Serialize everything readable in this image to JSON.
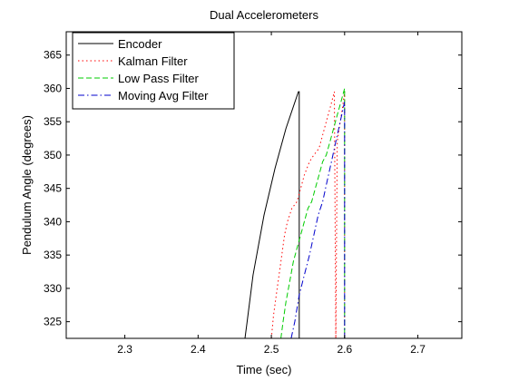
{
  "chart_data": {
    "type": "line",
    "title": "Dual Accelerometers",
    "xlabel": "Time (sec)",
    "ylabel": "Pendulum Angle (degrees)",
    "xlim": [
      2.22,
      2.76
    ],
    "ylim": [
      322.5,
      368.5
    ],
    "xticks": [
      2.3,
      2.4,
      2.5,
      2.6,
      2.7
    ],
    "yticks": [
      325,
      330,
      335,
      340,
      345,
      350,
      355,
      360,
      365
    ],
    "grid": false,
    "legend_position": "top-left",
    "series": [
      {
        "name": "Encoder",
        "color": "#000000",
        "dash": "solid",
        "x": [
          2.464,
          2.467,
          2.475,
          2.49,
          2.505,
          2.52,
          2.537,
          2.538,
          2.538
        ],
        "y": [
          322.5,
          325,
          332,
          341,
          348,
          354,
          359.5,
          359.5,
          322.5
        ]
      },
      {
        "name": "Kalman Filter",
        "color": "#ff0000",
        "dash": "dotted",
        "x": [
          2.5,
          2.503,
          2.508,
          2.513,
          2.518,
          2.522,
          2.528,
          2.535,
          2.54,
          2.545,
          2.552,
          2.558,
          2.565,
          2.57,
          2.575,
          2.58,
          2.586,
          2.588,
          2.59,
          2.594,
          2.597,
          2.6,
          2.6
        ],
        "y": [
          322.5,
          326,
          330,
          334,
          338,
          340,
          342,
          343,
          345,
          347,
          349,
          350,
          351,
          353,
          355,
          357,
          359.5,
          322.5,
          352,
          355,
          357,
          359.5,
          322.5
        ]
      },
      {
        "name": "Low Pass Filter",
        "color": "#00cc00",
        "dash": "dashed",
        "x": [
          2.513,
          2.516,
          2.52,
          2.525,
          2.53,
          2.535,
          2.54,
          2.545,
          2.55,
          2.555,
          2.56,
          2.565,
          2.57,
          2.575,
          2.58,
          2.585,
          2.59,
          2.595,
          2.6,
          2.6
        ],
        "y": [
          322.5,
          325,
          328,
          331,
          334,
          336,
          338,
          340,
          342,
          343,
          345,
          347,
          349,
          350,
          352,
          354,
          356,
          358,
          360,
          322.5
        ]
      },
      {
        "name": "Moving Avg Filter",
        "color": "#0000cc",
        "dash": "dashdot",
        "x": [
          2.527,
          2.532,
          2.538,
          2.545,
          2.552,
          2.558,
          2.564,
          2.57,
          2.576,
          2.582,
          2.588,
          2.594,
          2.6,
          2.6
        ],
        "y": [
          322.5,
          325,
          329,
          332,
          335,
          338,
          341,
          343,
          346,
          349,
          352,
          355,
          358,
          322.5
        ]
      }
    ]
  }
}
